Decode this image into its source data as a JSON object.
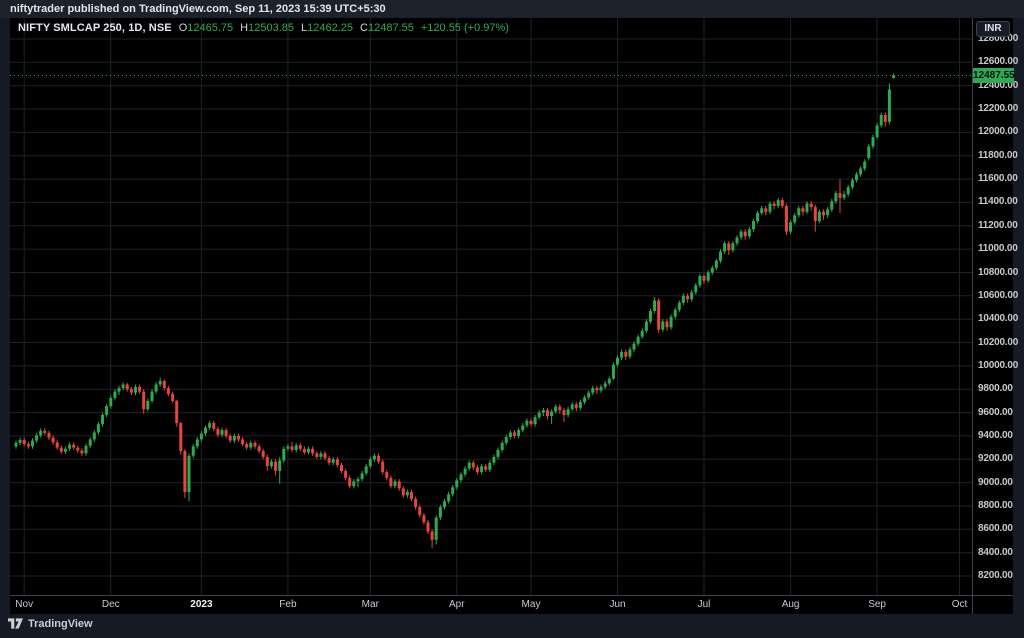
{
  "topbar": {
    "publish_line": "niftytrader published on TradingView.com, Sep 11, 2023 15:39 UTC+5:30"
  },
  "legend": {
    "title": "NIFTY SMLCAP 250, 1D, NSE",
    "o_label": "O",
    "o_value": "12465.75",
    "h_label": "H",
    "h_value": "12503.85",
    "l_label": "L",
    "l_value": "12462.25",
    "c_label": "C",
    "c_value": "12487.55",
    "change": "+120.55 (+0.97%)"
  },
  "price_axis": {
    "currency_button": "INR",
    "last_price_label": "12487.55"
  },
  "footer": {
    "brand": "TradingView"
  },
  "colors": {
    "up": "#2dab4e",
    "down": "#e8463c",
    "grid": "#1e222a",
    "chart_bg": "#000000",
    "panel_bg": "#151a25",
    "axis_text": "#c6c9cf",
    "last_price_bg": "#2dab4e"
  },
  "chart_data": {
    "type": "candlestick",
    "title": "NIFTY SMLCAP 250, 1D, NSE",
    "symbol": "NIFTY SMLCAP 250",
    "interval": "1D",
    "exchange": "NSE",
    "currency": "INR",
    "y_min": 8200,
    "y_max": 12800,
    "y_step": 200,
    "last_open": 12465.75,
    "last_high": 12503.85,
    "last_low": 12462.25,
    "last_close": 12487.55,
    "change": "+120.55",
    "change_pct": "+0.97%",
    "ticks": [
      {
        "label": "Nov",
        "index": 2,
        "bold": false
      },
      {
        "label": "Dec",
        "index": 23,
        "bold": false
      },
      {
        "label": "2023",
        "index": 45,
        "bold": true
      },
      {
        "label": "Feb",
        "index": 66,
        "bold": false
      },
      {
        "label": "Mar",
        "index": 86,
        "bold": false
      },
      {
        "label": "Apr",
        "index": 107,
        "bold": false
      },
      {
        "label": "May",
        "index": 125,
        "bold": false
      },
      {
        "label": "Jun",
        "index": 146,
        "bold": false
      },
      {
        "label": "Jul",
        "index": 167,
        "bold": false
      },
      {
        "label": "Aug",
        "index": 188,
        "bold": false
      },
      {
        "label": "Sep",
        "index": 209,
        "bold": false
      },
      {
        "label": "Oct",
        "index": 229,
        "bold": false
      }
    ],
    "candles": [
      [
        9310,
        9360,
        9290,
        9340
      ],
      [
        9340,
        9385,
        9320,
        9365
      ],
      [
        9365,
        9385,
        9310,
        9330
      ],
      [
        9330,
        9350,
        9290,
        9310
      ],
      [
        9310,
        9380,
        9290,
        9360
      ],
      [
        9360,
        9425,
        9340,
        9405
      ],
      [
        9405,
        9465,
        9385,
        9445
      ],
      [
        9445,
        9465,
        9405,
        9425
      ],
      [
        9425,
        9445,
        9365,
        9385
      ],
      [
        9385,
        9405,
        9325,
        9345
      ],
      [
        9345,
        9365,
        9280,
        9300
      ],
      [
        9300,
        9320,
        9245,
        9265
      ],
      [
        9265,
        9310,
        9245,
        9290
      ],
      [
        9290,
        9345,
        9270,
        9325
      ],
      [
        9325,
        9345,
        9280,
        9300
      ],
      [
        9300,
        9320,
        9255,
        9275
      ],
      [
        9275,
        9295,
        9230,
        9250
      ],
      [
        9250,
        9335,
        9230,
        9315
      ],
      [
        9315,
        9390,
        9295,
        9370
      ],
      [
        9370,
        9450,
        9350,
        9430
      ],
      [
        9430,
        9520,
        9410,
        9500
      ],
      [
        9500,
        9600,
        9480,
        9580
      ],
      [
        9580,
        9675,
        9560,
        9655
      ],
      [
        9655,
        9745,
        9635,
        9725
      ],
      [
        9725,
        9800,
        9705,
        9780
      ],
      [
        9780,
        9830,
        9750,
        9810
      ],
      [
        9810,
        9860,
        9790,
        9840
      ],
      [
        9840,
        9855,
        9780,
        9800
      ],
      [
        9800,
        9820,
        9750,
        9770
      ],
      [
        9770,
        9840,
        9750,
        9820
      ],
      [
        9820,
        9840,
        9760,
        9780
      ],
      [
        9780,
        9800,
        9590,
        9630
      ],
      [
        9630,
        9720,
        9610,
        9700
      ],
      [
        9700,
        9800,
        9680,
        9780
      ],
      [
        9780,
        9860,
        9760,
        9840
      ],
      [
        9840,
        9900,
        9820,
        9870
      ],
      [
        9870,
        9880,
        9790,
        9810
      ],
      [
        9810,
        9830,
        9740,
        9760
      ],
      [
        9760,
        9780,
        9680,
        9700
      ],
      [
        9700,
        9710,
        9480,
        9510
      ],
      [
        9510,
        9520,
        9240,
        9270
      ],
      [
        9270,
        9290,
        8870,
        8920
      ],
      [
        8920,
        9250,
        8840,
        9230
      ],
      [
        9230,
        9330,
        9210,
        9310
      ],
      [
        9310,
        9390,
        9290,
        9370
      ],
      [
        9370,
        9440,
        9350,
        9420
      ],
      [
        9420,
        9490,
        9400,
        9470
      ],
      [
        9470,
        9530,
        9450,
        9510
      ],
      [
        9510,
        9530,
        9440,
        9460
      ],
      [
        9460,
        9480,
        9390,
        9410
      ],
      [
        9410,
        9470,
        9390,
        9450
      ],
      [
        9450,
        9470,
        9380,
        9400
      ],
      [
        9400,
        9420,
        9340,
        9360
      ],
      [
        9360,
        9420,
        9340,
        9400
      ],
      [
        9400,
        9420,
        9350,
        9370
      ],
      [
        9370,
        9390,
        9310,
        9330
      ],
      [
        9330,
        9350,
        9280,
        9300
      ],
      [
        9300,
        9360,
        9280,
        9340
      ],
      [
        9340,
        9360,
        9290,
        9310
      ],
      [
        9310,
        9330,
        9250,
        9270
      ],
      [
        9270,
        9290,
        9200,
        9220
      ],
      [
        9220,
        9240,
        9100,
        9140
      ],
      [
        9140,
        9200,
        9120,
        9180
      ],
      [
        9180,
        9200,
        9060,
        9100
      ],
      [
        9100,
        9220,
        8990,
        9190
      ],
      [
        9190,
        9310,
        9170,
        9290
      ],
      [
        9290,
        9330,
        9270,
        9310
      ],
      [
        9310,
        9350,
        9260,
        9280
      ],
      [
        9280,
        9340,
        9260,
        9320
      ],
      [
        9320,
        9340,
        9270,
        9290
      ],
      [
        9290,
        9310,
        9240,
        9260
      ],
      [
        9260,
        9310,
        9240,
        9290
      ],
      [
        9290,
        9310,
        9230,
        9250
      ],
      [
        9250,
        9270,
        9200,
        9220
      ],
      [
        9220,
        9270,
        9200,
        9250
      ],
      [
        9250,
        9270,
        9190,
        9210
      ],
      [
        9210,
        9230,
        9150,
        9170
      ],
      [
        9170,
        9220,
        9150,
        9200
      ],
      [
        9200,
        9220,
        9130,
        9150
      ],
      [
        9150,
        9170,
        9080,
        9100
      ],
      [
        9100,
        9120,
        9020,
        9040
      ],
      [
        9040,
        9060,
        8950,
        8970
      ],
      [
        8970,
        9030,
        8950,
        9010
      ],
      [
        9010,
        9050,
        8960,
        9030
      ],
      [
        9030,
        9100,
        9010,
        9080
      ],
      [
        9080,
        9160,
        9060,
        9140
      ],
      [
        9140,
        9220,
        9120,
        9200
      ],
      [
        9200,
        9250,
        9180,
        9230
      ],
      [
        9230,
        9250,
        9160,
        9180
      ],
      [
        9180,
        9200,
        9070,
        9090
      ],
      [
        9090,
        9110,
        9020,
        9040
      ],
      [
        9040,
        9060,
        8950,
        8970
      ],
      [
        8970,
        9030,
        8950,
        9010
      ],
      [
        9010,
        9030,
        8930,
        8950
      ],
      [
        8950,
        8970,
        8870,
        8890
      ],
      [
        8890,
        8940,
        8870,
        8920
      ],
      [
        8920,
        8940,
        8840,
        8860
      ],
      [
        8860,
        8880,
        8770,
        8790
      ],
      [
        8790,
        8810,
        8700,
        8720
      ],
      [
        8720,
        8740,
        8640,
        8660
      ],
      [
        8660,
        8680,
        8560,
        8580
      ],
      [
        8580,
        8600,
        8440,
        8510
      ],
      [
        8510,
        8720,
        8470,
        8700
      ],
      [
        8700,
        8810,
        8680,
        8790
      ],
      [
        8790,
        8860,
        8770,
        8840
      ],
      [
        8840,
        8920,
        8820,
        8900
      ],
      [
        8900,
        8980,
        8880,
        8960
      ],
      [
        8960,
        9040,
        8940,
        9020
      ],
      [
        9020,
        9090,
        9000,
        9070
      ],
      [
        9070,
        9140,
        9050,
        9120
      ],
      [
        9120,
        9190,
        9100,
        9170
      ],
      [
        9170,
        9190,
        9110,
        9130
      ],
      [
        9130,
        9150,
        9070,
        9090
      ],
      [
        9090,
        9160,
        9070,
        9140
      ],
      [
        9140,
        9160,
        9090,
        9110
      ],
      [
        9110,
        9190,
        9090,
        9170
      ],
      [
        9170,
        9240,
        9150,
        9220
      ],
      [
        9220,
        9300,
        9200,
        9280
      ],
      [
        9280,
        9360,
        9260,
        9340
      ],
      [
        9340,
        9410,
        9320,
        9390
      ],
      [
        9390,
        9450,
        9370,
        9430
      ],
      [
        9430,
        9450,
        9380,
        9400
      ],
      [
        9400,
        9470,
        9380,
        9450
      ],
      [
        9450,
        9510,
        9430,
        9490
      ],
      [
        9490,
        9550,
        9470,
        9530
      ],
      [
        9530,
        9550,
        9480,
        9500
      ],
      [
        9500,
        9580,
        9480,
        9560
      ],
      [
        9560,
        9620,
        9540,
        9600
      ],
      [
        9600,
        9640,
        9570,
        9620
      ],
      [
        9620,
        9640,
        9540,
        9570
      ],
      [
        9570,
        9630,
        9500,
        9610
      ],
      [
        9610,
        9670,
        9590,
        9650
      ],
      [
        9650,
        9670,
        9590,
        9620
      ],
      [
        9620,
        9640,
        9520,
        9580
      ],
      [
        9580,
        9650,
        9560,
        9630
      ],
      [
        9630,
        9690,
        9610,
        9670
      ],
      [
        9670,
        9690,
        9610,
        9640
      ],
      [
        9640,
        9710,
        9620,
        9690
      ],
      [
        9690,
        9750,
        9670,
        9730
      ],
      [
        9730,
        9790,
        9710,
        9770
      ],
      [
        9770,
        9830,
        9750,
        9810
      ],
      [
        9810,
        9830,
        9760,
        9790
      ],
      [
        9790,
        9840,
        9770,
        9820
      ],
      [
        9820,
        9870,
        9800,
        9850
      ],
      [
        9850,
        9910,
        9830,
        9890
      ],
      [
        9890,
        10030,
        9880,
        10010
      ],
      [
        10010,
        10090,
        9990,
        10070
      ],
      [
        10070,
        10140,
        10050,
        10120
      ],
      [
        10120,
        10140,
        10050,
        10080
      ],
      [
        10080,
        10160,
        10060,
        10140
      ],
      [
        10140,
        10210,
        10120,
        10190
      ],
      [
        10190,
        10270,
        10170,
        10250
      ],
      [
        10250,
        10320,
        10230,
        10300
      ],
      [
        10300,
        10400,
        10280,
        10380
      ],
      [
        10380,
        10490,
        10360,
        10470
      ],
      [
        10470,
        10590,
        10450,
        10560
      ],
      [
        10560,
        10580,
        10280,
        10310
      ],
      [
        10310,
        10400,
        10290,
        10380
      ],
      [
        10380,
        10400,
        10300,
        10330
      ],
      [
        10330,
        10440,
        10310,
        10420
      ],
      [
        10420,
        10500,
        10400,
        10480
      ],
      [
        10480,
        10560,
        10460,
        10540
      ],
      [
        10540,
        10620,
        10520,
        10600
      ],
      [
        10600,
        10620,
        10540,
        10570
      ],
      [
        10570,
        10650,
        10550,
        10630
      ],
      [
        10630,
        10710,
        10610,
        10690
      ],
      [
        10690,
        10790,
        10670,
        10770
      ],
      [
        10770,
        10790,
        10700,
        10730
      ],
      [
        10730,
        10820,
        10710,
        10800
      ],
      [
        10800,
        10860,
        10780,
        10840
      ],
      [
        10840,
        10920,
        10820,
        10900
      ],
      [
        10900,
        11000,
        10880,
        10980
      ],
      [
        10980,
        11070,
        10960,
        11050
      ],
      [
        11050,
        11070,
        10950,
        10990
      ],
      [
        10990,
        11070,
        10970,
        11050
      ],
      [
        11050,
        11120,
        11030,
        11100
      ],
      [
        11100,
        11170,
        11080,
        11150
      ],
      [
        11150,
        11170,
        11080,
        11110
      ],
      [
        11110,
        11190,
        11090,
        11170
      ],
      [
        11170,
        11260,
        11150,
        11240
      ],
      [
        11240,
        11330,
        11220,
        11310
      ],
      [
        11310,
        11370,
        11290,
        11350
      ],
      [
        11350,
        11370,
        11290,
        11320
      ],
      [
        11320,
        11410,
        11300,
        11390
      ],
      [
        11390,
        11410,
        11340,
        11370
      ],
      [
        11370,
        11440,
        11350,
        11420
      ],
      [
        11420,
        11440,
        11350,
        11370
      ],
      [
        11370,
        11390,
        11120,
        11150
      ],
      [
        11150,
        11250,
        11130,
        11230
      ],
      [
        11230,
        11310,
        11210,
        11290
      ],
      [
        11290,
        11370,
        11270,
        11350
      ],
      [
        11350,
        11370,
        11290,
        11320
      ],
      [
        11320,
        11410,
        11300,
        11390
      ],
      [
        11390,
        11410,
        11330,
        11360
      ],
      [
        11360,
        11380,
        11150,
        11240
      ],
      [
        11240,
        11340,
        11220,
        11320
      ],
      [
        11320,
        11340,
        11250,
        11290
      ],
      [
        11290,
        11360,
        11270,
        11340
      ],
      [
        11340,
        11430,
        11320,
        11410
      ],
      [
        11410,
        11500,
        11390,
        11480
      ],
      [
        11480,
        11600,
        11310,
        11440
      ],
      [
        11440,
        11500,
        11420,
        11470
      ],
      [
        11470,
        11550,
        11450,
        11530
      ],
      [
        11530,
        11610,
        11510,
        11590
      ],
      [
        11590,
        11660,
        11570,
        11640
      ],
      [
        11640,
        11710,
        11620,
        11690
      ],
      [
        11690,
        11770,
        11670,
        11750
      ],
      [
        11780,
        11900,
        11760,
        11880
      ],
      [
        11880,
        11980,
        11860,
        11960
      ],
      [
        11960,
        12080,
        11940,
        12060
      ],
      [
        12060,
        12170,
        12040,
        12150
      ],
      [
        12150,
        12170,
        12050,
        12090
      ],
      [
        12090,
        12420,
        12070,
        12367
      ],
      [
        12465.75,
        12503.85,
        12462.25,
        12487.55
      ]
    ]
  }
}
